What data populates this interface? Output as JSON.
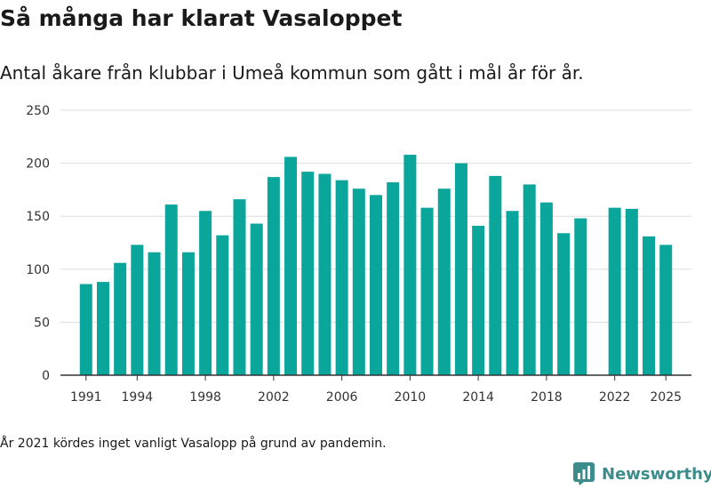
{
  "title": "Så många har klarat Vasaloppet",
  "subtitle": "Antal åkare från klubbar i Umeå kommun som gått i mål år för år.",
  "note": "År 2021 kördes inget vanligt Vasalopp på grund av pandemin.",
  "brand": "Newsworthy",
  "colors": {
    "bar": "#0aa59b",
    "grid": "#dddddd",
    "axis": "#333333",
    "brand": "#3c8c8c"
  },
  "chart_data": {
    "type": "bar",
    "x_ticks": [
      "1991",
      "1994",
      "1998",
      "2002",
      "2006",
      "2010",
      "2014",
      "2018",
      "2022",
      "2025"
    ],
    "y_ticks": [
      0,
      50,
      100,
      150,
      200,
      250
    ],
    "ylim": [
      0,
      250
    ],
    "xlim": [
      1989.5,
      2026.5
    ],
    "grid": true,
    "categories": [
      "1991",
      "1992",
      "1993",
      "1994",
      "1995",
      "1996",
      "1997",
      "1998",
      "1999",
      "2000",
      "2001",
      "2002",
      "2003",
      "2004",
      "2005",
      "2006",
      "2007",
      "2008",
      "2009",
      "2010",
      "2011",
      "2012",
      "2013",
      "2014",
      "2015",
      "2016",
      "2017",
      "2018",
      "2019",
      "2020",
      "2022",
      "2023",
      "2024",
      "2025"
    ],
    "values": [
      86,
      88,
      106,
      123,
      116,
      161,
      116,
      155,
      132,
      166,
      143,
      187,
      206,
      192,
      190,
      184,
      176,
      170,
      182,
      208,
      158,
      176,
      200,
      141,
      188,
      155,
      180,
      163,
      134,
      148,
      158,
      157,
      131,
      123
    ]
  }
}
